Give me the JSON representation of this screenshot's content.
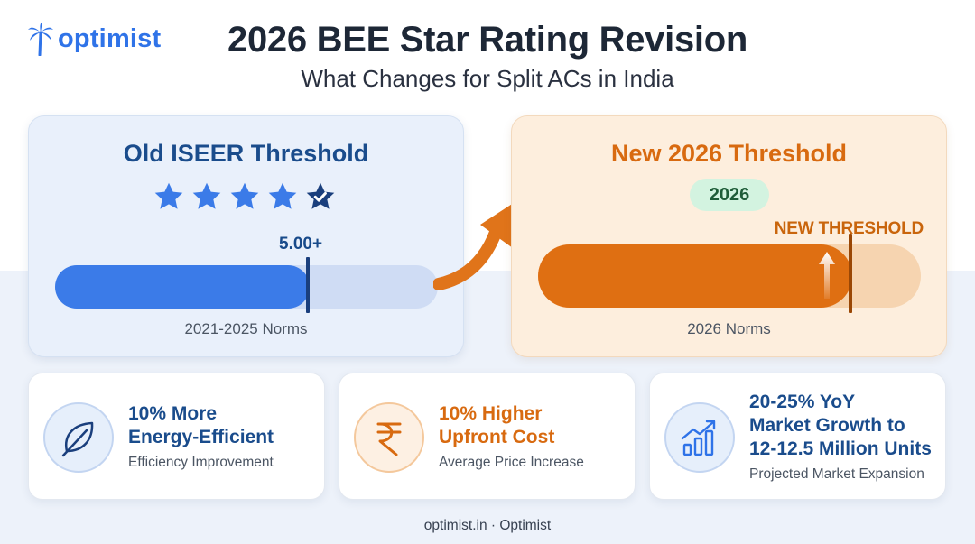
{
  "brand": {
    "name": "optimist",
    "logo_icon": "palm-tree-icon",
    "color": "#2f73e8"
  },
  "title": "2026 BEE Star Rating Revision",
  "subtitle": "What Changes for Split ACs in India",
  "old_card": {
    "title": "Old ISEER Threshold",
    "stars": 5,
    "threshold_value": "5.00+",
    "norms": "2021-2025 Norms",
    "accent": "#3b7be8"
  },
  "new_card": {
    "title": "New 2026 Threshold",
    "badge": "2026",
    "threshold_label": "NEW THRESHOLD",
    "norms": "2026 Norms",
    "accent": "#df6f12"
  },
  "stats": [
    {
      "heading": [
        "10% More",
        "Energy-Efficient"
      ],
      "caption": "Efficiency Improvement",
      "icon": "leaf-icon"
    },
    {
      "heading": [
        "10% Higher",
        "Upfront Cost"
      ],
      "caption": "Average Price Increase",
      "icon": "rupee-icon"
    },
    {
      "heading": [
        "20-25% YoY",
        "Market Growth to",
        "12-12.5 Million Units"
      ],
      "caption": "Projected Market Expansion",
      "icon": "growth-chart-icon"
    }
  ],
  "footer": "optimist.in · Optimist"
}
